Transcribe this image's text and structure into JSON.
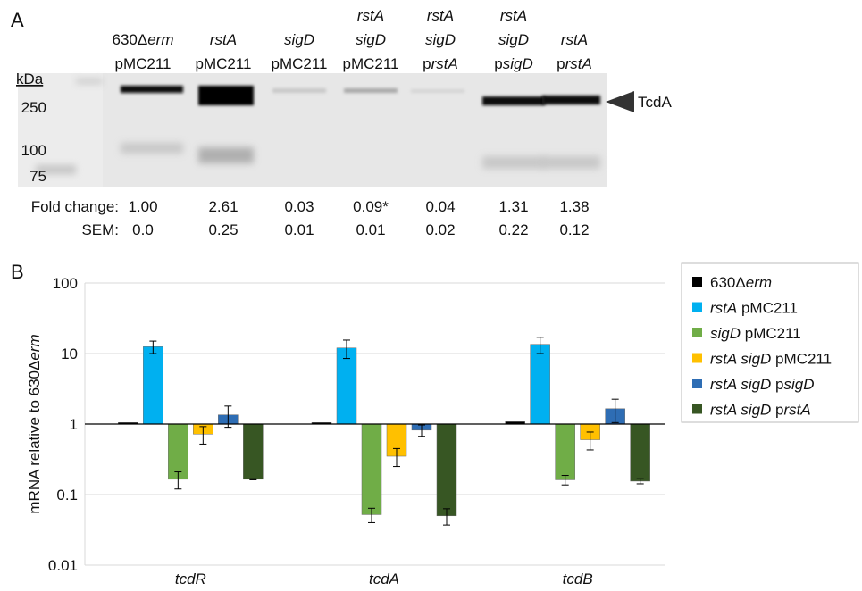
{
  "panel_a": {
    "label": "A",
    "kda_label": "kDa",
    "markers": [
      "250",
      "100",
      "75"
    ],
    "band_label": "TcdA",
    "lanes": [
      [
        [
          {
            "text": "630Δ"
          },
          {
            "text": "erm",
            "italic": true
          }
        ],
        [
          {
            "text": "pMC211"
          }
        ]
      ],
      [
        [
          {
            "text": "rstA",
            "italic": true
          }
        ],
        [
          {
            "text": "pMC211"
          }
        ]
      ],
      [
        [
          {
            "text": "sigD",
            "italic": true
          }
        ],
        [
          {
            "text": "pMC211"
          }
        ]
      ],
      [
        [
          {
            "text": "rstA",
            "italic": true
          }
        ],
        [
          {
            "text": "sigD",
            "italic": true
          }
        ],
        [
          {
            "text": "pMC211"
          }
        ]
      ],
      [
        [
          {
            "text": "rstA",
            "italic": true
          }
        ],
        [
          {
            "text": "sigD",
            "italic": true
          }
        ],
        [
          {
            "text": "p"
          },
          {
            "text": "rstA",
            "italic": true
          }
        ]
      ],
      [
        [
          {
            "text": "rstA",
            "italic": true
          }
        ],
        [
          {
            "text": "sigD",
            "italic": true
          }
        ],
        [
          {
            "text": "p"
          },
          {
            "text": "sigD",
            "italic": true
          }
        ]
      ],
      [
        [
          {
            "text": "rstA",
            "italic": true
          }
        ],
        [
          {
            "text": "p"
          },
          {
            "text": "rstA",
            "italic": true
          }
        ]
      ]
    ],
    "fold_change": {
      "label": "Fold change:",
      "values": [
        "1.00",
        "2.61",
        "0.03",
        "0.09*",
        "0.04",
        "1.31",
        "1.38"
      ]
    },
    "sem": {
      "label": "SEM:",
      "values": [
        "0.0",
        "0.25",
        "0.01",
        "0.01",
        "0.02",
        "0.22",
        "0.12"
      ]
    }
  },
  "chart_data": {
    "type": "bar",
    "panel_label": "B",
    "y_label": [
      {
        "text": "mRNA relative to 630Δ"
      },
      {
        "text": "erm",
        "italic": true
      }
    ],
    "categories": [
      "tcdR",
      "tcdA",
      "tcdB"
    ],
    "category_italic": true,
    "log_scale": true,
    "baseline": 1,
    "ylim": [
      0.01,
      100
    ],
    "yticks": [
      0.01,
      0.1,
      1,
      10,
      100
    ],
    "grid": true,
    "legend": "right",
    "series": [
      {
        "name": [
          {
            "text": "630Δ"
          },
          {
            "text": "erm",
            "italic": true
          }
        ],
        "color": "#000000",
        "values": [
          1.05,
          1.05,
          1.08
        ]
      },
      {
        "name": [
          {
            "text": "rstA",
            "italic": true
          },
          {
            "text": " pMC211"
          }
        ],
        "color": "#00b0f0",
        "values": [
          12.5,
          12,
          13.5
        ],
        "errors": [
          2.5,
          3.5,
          3.5
        ]
      },
      {
        "name": [
          {
            "text": "sigD",
            "italic": true
          },
          {
            "text": " pMC211"
          }
        ],
        "color": "#70ad47",
        "values": [
          0.165,
          0.052,
          0.162
        ],
        "errors": [
          0.045,
          0.012,
          0.025
        ]
      },
      {
        "name": [
          {
            "text": "rstA sigD",
            "italic": true
          },
          {
            "text": " pMC211"
          }
        ],
        "color": "#ffc000",
        "values": [
          0.72,
          0.35,
          0.6
        ],
        "errors": [
          0.2,
          0.1,
          0.17
        ]
      },
      {
        "name": [
          {
            "text": "rstA sigD",
            "italic": true
          },
          {
            "text": " p"
          },
          {
            "text": "sigD",
            "italic": true
          }
        ],
        "color": "#2e6db4",
        "values": [
          1.35,
          0.82,
          1.65
        ],
        "errors": [
          0.45,
          0.15,
          0.6
        ]
      },
      {
        "name": [
          {
            "text": "rstA sigD",
            "italic": true
          },
          {
            "text": " p"
          },
          {
            "text": "rstA",
            "italic": true
          }
        ],
        "color": "#375623",
        "values": [
          0.165,
          0.05,
          0.155
        ],
        "errors": [
          0.003,
          0.013,
          0.013
        ]
      }
    ]
  }
}
